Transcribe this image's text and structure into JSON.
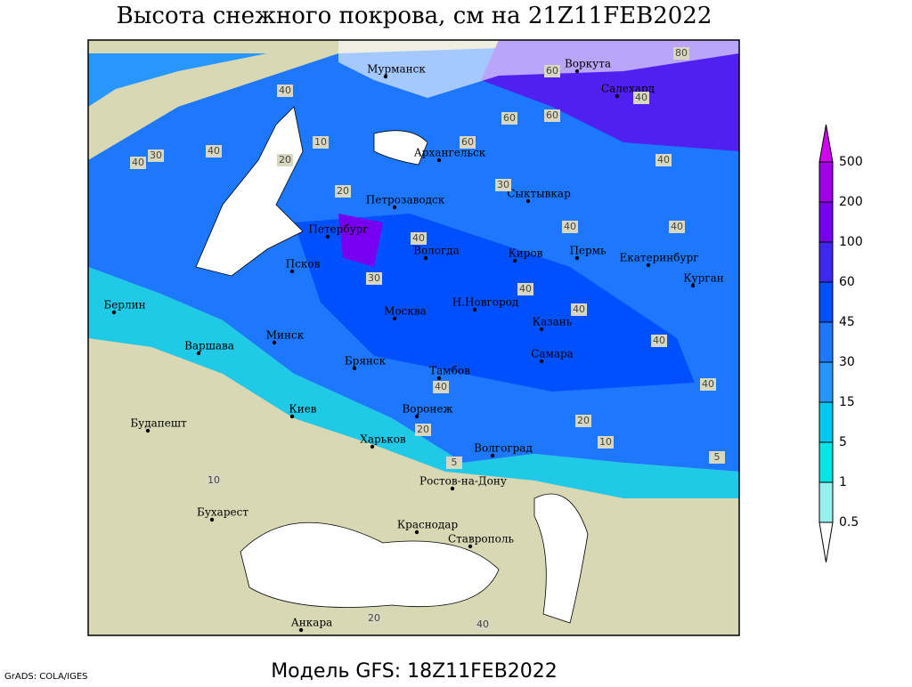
{
  "title": "Высота снежного покрова, см на 21Z11FEB2022",
  "footer": "Модель GFS: 18Z11FEB2022",
  "credit": "GrADS: COLA/IGES",
  "legend": {
    "levels": [
      0.5,
      1,
      5,
      15,
      30,
      45,
      60,
      100,
      200,
      500
    ],
    "colors": [
      "#ffffff",
      "#96f0f0",
      "#00e6e6",
      "#00c8f0",
      "#2896ff",
      "#1e78ff",
      "#0050ff",
      "#3c28f0",
      "#7800f0",
      "#a000e6",
      "#d200f0"
    ]
  },
  "cities": [
    "Мурманск",
    "Воркута",
    "Салехард",
    "Архангельск",
    "Сыктывкар",
    "Петрозаводск",
    "Петербург",
    "Вологда",
    "Киров",
    "Пермь",
    "Екатеринбург",
    "Псков",
    "Курган",
    "Берлин",
    "Н.Новгород",
    "Москва",
    "Казань",
    "Минск",
    "Варшава",
    "Самара",
    "Брянск",
    "Тамбов",
    "Киев",
    "Воронеж",
    "Будапешт",
    "Харьков",
    "Волгоград",
    "Ростов-на-Дону",
    "Бухарест",
    "Краснодар",
    "Ставрополь",
    "Анкара"
  ],
  "contour_labels": [
    80,
    60,
    40,
    60,
    40,
    60,
    60,
    40,
    40,
    30,
    20,
    10,
    20,
    30,
    40,
    40,
    40,
    40,
    40,
    40,
    40,
    40,
    30,
    40,
    20,
    20,
    5,
    10,
    5,
    10,
    40,
    20
  ]
}
